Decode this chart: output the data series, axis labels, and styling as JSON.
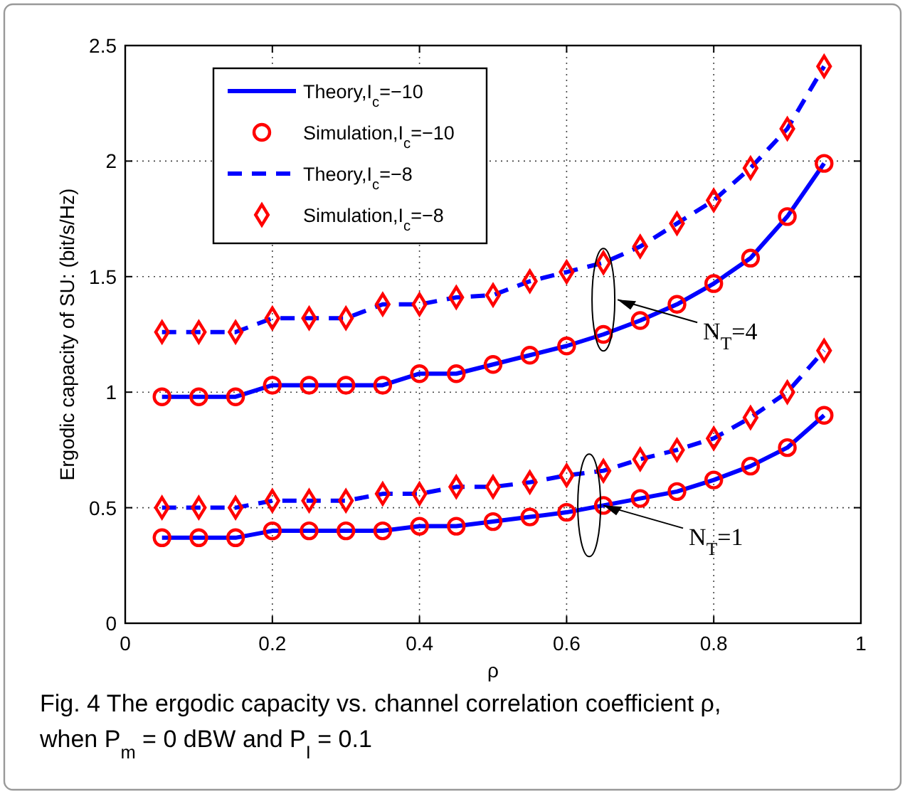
{
  "chart_data": {
    "type": "line",
    "xlabel": "ρ",
    "ylabel": "Ergodic capacity of SU: (bit/s/Hz)",
    "x": [
      0.05,
      0.1,
      0.15,
      0.2,
      0.25,
      0.3,
      0.35,
      0.4,
      0.45,
      0.5,
      0.55,
      0.6,
      0.65,
      0.7,
      0.75,
      0.8,
      0.85,
      0.9,
      0.95
    ],
    "series": [
      {
        "name": "Theory,I$_{c}$=−10",
        "color": "#0000ff",
        "line_style": "solid",
        "values": [
          0.98,
          0.98,
          0.98,
          1.03,
          1.03,
          1.03,
          1.03,
          1.08,
          1.08,
          1.12,
          1.16,
          1.2,
          1.25,
          1.31,
          1.38,
          1.47,
          1.58,
          1.76,
          1.99
        ]
      },
      {
        "name": "Simulation,I$_{c}$=−10",
        "type": "scatter",
        "color": "#ff0000",
        "marker": "circle",
        "values": [
          0.98,
          0.98,
          0.98,
          1.03,
          1.03,
          1.03,
          1.03,
          1.08,
          1.08,
          1.12,
          1.16,
          1.2,
          1.25,
          1.31,
          1.38,
          1.47,
          1.58,
          1.76,
          1.99
        ]
      },
      {
        "name": "Theory,I$_{c}$=−8",
        "color": "#0000ff",
        "line_style": "dashed",
        "values": [
          1.26,
          1.26,
          1.26,
          1.32,
          1.32,
          1.32,
          1.38,
          1.38,
          1.41,
          1.42,
          1.48,
          1.52,
          1.56,
          1.63,
          1.73,
          1.83,
          1.97,
          2.14,
          2.41
        ]
      },
      {
        "name": "Simulation,I$_{c}$=−8",
        "type": "scatter",
        "color": "#ff0000",
        "marker": "diamond",
        "values": [
          1.26,
          1.26,
          1.26,
          1.32,
          1.32,
          1.32,
          1.38,
          1.38,
          1.41,
          1.42,
          1.48,
          1.52,
          1.56,
          1.63,
          1.73,
          1.83,
          1.97,
          2.14,
          2.41
        ]
      },
      {
        "color": "#0000ff",
        "line_style": "solid",
        "values": [
          0.37,
          0.37,
          0.37,
          0.4,
          0.4,
          0.4,
          0.4,
          0.42,
          0.42,
          0.44,
          0.46,
          0.48,
          0.51,
          0.54,
          0.57,
          0.62,
          0.68,
          0.76,
          0.9
        ]
      },
      {
        "type": "scatter",
        "color": "#ff0000",
        "marker": "circle",
        "values": [
          0.37,
          0.37,
          0.37,
          0.4,
          0.4,
          0.4,
          0.4,
          0.42,
          0.42,
          0.44,
          0.46,
          0.48,
          0.51,
          0.54,
          0.57,
          0.62,
          0.68,
          0.76,
          0.9
        ]
      },
      {
        "color": "#0000ff",
        "line_style": "dashed",
        "values": [
          0.5,
          0.5,
          0.5,
          0.53,
          0.53,
          0.53,
          0.56,
          0.56,
          0.59,
          0.59,
          0.61,
          0.64,
          0.66,
          0.71,
          0.75,
          0.8,
          0.89,
          1.0,
          1.18
        ]
      },
      {
        "type": "scatter",
        "color": "#ff0000",
        "marker": "diamond",
        "values": [
          0.5,
          0.5,
          0.5,
          0.53,
          0.53,
          0.53,
          0.56,
          0.56,
          0.59,
          0.59,
          0.61,
          0.64,
          0.66,
          0.71,
          0.75,
          0.8,
          0.89,
          1.0,
          1.18
        ]
      }
    ],
    "xlim": [
      0,
      1
    ],
    "xticks": [
      0,
      0.2,
      0.4,
      0.6,
      0.8,
      1
    ],
    "ylim": [
      0,
      2.5
    ],
    "yticks": [
      0,
      0.5,
      1,
      1.5,
      2,
      2.5
    ],
    "grid": true,
    "legend": "top left",
    "annotations": [
      "N$_{T}$=4",
      {
        "text": "N$_{T}$=1",
        "x": 0.65,
        "y": 0.51
      },
      "Fig. 4 The ergodic capacity vs. channel correlation coefficient ρ, when P$_{m}$ = 0  dBW and P$_{I}$ = 0.1"
    ]
  }
}
